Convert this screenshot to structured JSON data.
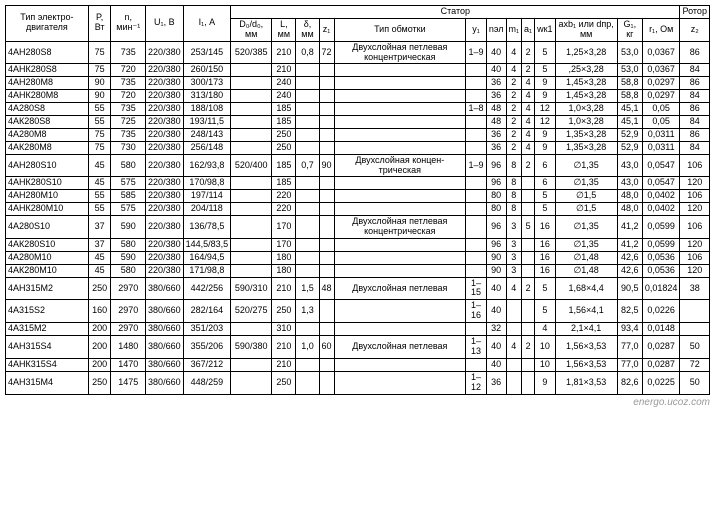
{
  "headers": {
    "type": "Тип электро-двигателя",
    "p": "P,\nВт",
    "n": "n,\nмин⁻¹",
    "u": "U₁,\nВ",
    "i": "I₁,\nА",
    "stator": "Статор",
    "rotor": "Ротор",
    "dc": "D₀/d₀,\nмм",
    "l": "L,\nмм",
    "delta": "δ,\nмм",
    "z1": "z₁",
    "winding": "Тип обмотки",
    "y1": "y₁",
    "np1": "nэл",
    "m1": "m₁",
    "a1": "a₁",
    "wk1": "wк1",
    "axb": "axb₁ или dпр,\nмм",
    "g1": "G₁, кг",
    "r1": "r₁, Ом",
    "z2": "z₂"
  },
  "rows": [
    {
      "type": "4АН280S8",
      "p": "75",
      "n": "735",
      "u": "220/380",
      "i": "253/145",
      "dc": "520/385",
      "l": "210",
      "d": "0,8",
      "z1": "72",
      "wind": "Двухслойная петлевая концентрическая",
      "y1": "1–9",
      "np": "40",
      "m": "4",
      "a": "2",
      "wk": "5",
      "axb": "1,25×3,28",
      "g": "53,0",
      "r": "0,0367",
      "z2": "86"
    },
    {
      "type": "4АНК280S8",
      "p": "75",
      "n": "720",
      "u": "220/380",
      "i": "260/150",
      "dc": "",
      "l": "210",
      "d": "",
      "z1": "",
      "wind": "",
      "y1": "",
      "np": "40",
      "m": "4",
      "a": "2",
      "wk": "5",
      "axb": ",25×3,28",
      "g": "53,0",
      "r": "0,0367",
      "z2": "84"
    },
    {
      "type": "4АН280М8",
      "p": "90",
      "n": "735",
      "u": "220/380",
      "i": "300/173",
      "dc": "",
      "l": "240",
      "d": "",
      "z1": "",
      "wind": "",
      "y1": "",
      "np": "36",
      "m": "2",
      "a": "4",
      "wk": "9",
      "axb": "1,45×3,28",
      "g": "58,8",
      "r": "0,0297",
      "z2": "86"
    },
    {
      "type": "4АНК280М8",
      "p": "90",
      "n": "720",
      "u": "220/380",
      "i": "313/180",
      "dc": "",
      "l": "240",
      "d": "",
      "z1": "",
      "wind": "",
      "y1": "",
      "np": "36",
      "m": "2",
      "a": "4",
      "wk": "9",
      "axb": "1,45×3,28",
      "g": "58,8",
      "r": "0,0297",
      "z2": "84"
    },
    {
      "type": "4А280S8",
      "p": "55",
      "n": "735",
      "u": "220/380",
      "i": "188/108",
      "dc": "",
      "l": "185",
      "d": "",
      "z1": "",
      "wind": "",
      "y1": "1–8",
      "np": "48",
      "m": "2",
      "a": "4",
      "wk": "12",
      "axb": "1,0×3,28",
      "g": "45,1",
      "r": "0,05",
      "z2": "86"
    },
    {
      "type": "4АК280S8",
      "p": "55",
      "n": "725",
      "u": "220/380",
      "i": "193/11,5",
      "dc": "",
      "l": "185",
      "d": "",
      "z1": "",
      "wind": "",
      "y1": "",
      "np": "48",
      "m": "2",
      "a": "4",
      "wk": "12",
      "axb": "1,0×3,28",
      "g": "45,1",
      "r": "0,05",
      "z2": "84"
    },
    {
      "type": "4А280М8",
      "p": "75",
      "n": "735",
      "u": "220/380",
      "i": "248/143",
      "dc": "",
      "l": "250",
      "d": "",
      "z1": "",
      "wind": "",
      "y1": "",
      "np": "36",
      "m": "2",
      "a": "4",
      "wk": "9",
      "axb": "1,35×3,28",
      "g": "52,9",
      "r": "0,0311",
      "z2": "86"
    },
    {
      "type": "4АК280М8",
      "p": "75",
      "n": "730",
      "u": "220/380",
      "i": "256/148",
      "dc": "",
      "l": "250",
      "d": "",
      "z1": "",
      "wind": "",
      "y1": "",
      "np": "36",
      "m": "2",
      "a": "4",
      "wk": "9",
      "axb": "1,35×3,28",
      "g": "52,9",
      "r": "0,0311",
      "z2": "84"
    },
    {
      "type": "4АН280S10",
      "p": "45",
      "n": "580",
      "u": "220/380",
      "i": "162/93,8",
      "dc": "520/400",
      "l": "185",
      "d": "0,7",
      "z1": "90",
      "wind": "Двухслойная концен-трическая",
      "y1": "1–9",
      "np": "96",
      "m": "8",
      "a": "2",
      "wk": "6",
      "axb": "∅1,35",
      "g": "43,0",
      "r": "0,0547",
      "z2": "106"
    },
    {
      "type": "4АНК280S10",
      "p": "45",
      "n": "575",
      "u": "220/380",
      "i": "170/98,8",
      "dc": "",
      "l": "185",
      "d": "",
      "z1": "",
      "wind": "",
      "y1": "",
      "np": "96",
      "m": "8",
      "a": "",
      "wk": "6",
      "axb": "∅1,35",
      "g": "43,0",
      "r": "0,0547",
      "z2": "120"
    },
    {
      "type": "4АН280М10",
      "p": "55",
      "n": "585",
      "u": "220/380",
      "i": "197/114",
      "dc": "",
      "l": "220",
      "d": "",
      "z1": "",
      "wind": "",
      "y1": "",
      "np": "80",
      "m": "8",
      "a": "",
      "wk": "5",
      "axb": "∅1,5",
      "g": "48,0",
      "r": "0,0402",
      "z2": "106"
    },
    {
      "type": "4АНК280М10",
      "p": "55",
      "n": "575",
      "u": "220/380",
      "i": "204/118",
      "dc": "",
      "l": "220",
      "d": "",
      "z1": "",
      "wind": "",
      "y1": "",
      "np": "80",
      "m": "8",
      "a": "",
      "wk": "5",
      "axb": "∅1,5",
      "g": "48,0",
      "r": "0,0402",
      "z2": "120"
    },
    {
      "type": "4А280S10",
      "p": "37",
      "n": "590",
      "u": "220/380",
      "i": "136/78,5",
      "dc": "",
      "l": "170",
      "d": "",
      "z1": "",
      "wind": "Двухслойная петлевая концентрическая",
      "y1": "",
      "np": "96",
      "m": "3",
      "a": "5",
      "wk": "16",
      "axb": "∅1,35",
      "g": "41,2",
      "r": "0,0599",
      "z2": "106"
    },
    {
      "type": "4АК280S10",
      "p": "37",
      "n": "580",
      "u": "220/380",
      "i": "144,5/83,5",
      "dc": "",
      "l": "170",
      "d": "",
      "z1": "",
      "wind": "",
      "y1": "",
      "np": "96",
      "m": "3",
      "a": "",
      "wk": "16",
      "axb": "∅1,35",
      "g": "41,2",
      "r": "0,0599",
      "z2": "120"
    },
    {
      "type": "4А280М10",
      "p": "45",
      "n": "590",
      "u": "220/380",
      "i": "164/94,5",
      "dc": "",
      "l": "180",
      "d": "",
      "z1": "",
      "wind": "",
      "y1": "",
      "np": "90",
      "m": "3",
      "a": "",
      "wk": "16",
      "axb": "∅1,48",
      "g": "42,6",
      "r": "0,0536",
      "z2": "106"
    },
    {
      "type": "4АК280М10",
      "p": "45",
      "n": "580",
      "u": "220/380",
      "i": "171/98,8",
      "dc": "",
      "l": "180",
      "d": "",
      "z1": "",
      "wind": "",
      "y1": "",
      "np": "90",
      "m": "3",
      "a": "",
      "wk": "16",
      "axb": "∅1,48",
      "g": "42,6",
      "r": "0,0536",
      "z2": "120"
    },
    {
      "type": "4АН315М2",
      "p": "250",
      "n": "2970",
      "u": "380/660",
      "i": "442/256",
      "dc": "590/310",
      "l": "210",
      "d": "1,5",
      "z1": "48",
      "wind": "Двухслойная петлевая",
      "y1": "1–15",
      "np": "40",
      "m": "4",
      "a": "2",
      "wk": "5",
      "axb": "1,68×4,4",
      "g": "90,5",
      "r": "0,01824",
      "z2": "38"
    },
    {
      "type": "4А315S2",
      "p": "160",
      "n": "2970",
      "u": "380/660",
      "i": "282/164",
      "dc": "520/275",
      "l": "250",
      "d": "1,3",
      "z1": "",
      "wind": "",
      "y1": "1–16",
      "np": "40",
      "m": "",
      "a": "",
      "wk": "5",
      "axb": "1,56×4,1",
      "g": "82,5",
      "r": "0,0226",
      "z2": ""
    },
    {
      "type": "4А315М2",
      "p": "200",
      "n": "2970",
      "u": "380/660",
      "i": "351/203",
      "dc": "",
      "l": "310",
      "d": "",
      "z1": "",
      "wind": "",
      "y1": "",
      "np": "32",
      "m": "",
      "a": "",
      "wk": "4",
      "axb": "2,1×4,1",
      "g": "93,4",
      "r": "0,0148",
      "z2": ""
    },
    {
      "type": "4АН315S4",
      "p": "200",
      "n": "1480",
      "u": "380/660",
      "i": "355/206",
      "dc": "590/380",
      "l": "210",
      "d": "1,0",
      "z1": "60",
      "wind": "Двухслойная петлевая",
      "y1": "1–13",
      "np": "40",
      "m": "4",
      "a": "2",
      "wk": "10",
      "axb": "1,56×3,53",
      "g": "77,0",
      "r": "0,0287",
      "z2": "50"
    },
    {
      "type": "4АНК315S4",
      "p": "200",
      "n": "1470",
      "u": "380/660",
      "i": "367/212",
      "dc": "",
      "l": "210",
      "d": "",
      "z1": "",
      "wind": "",
      "y1": "",
      "np": "40",
      "m": "",
      "a": "",
      "wk": "10",
      "axb": "1,56×3,53",
      "g": "77,0",
      "r": "0,0287",
      "z2": "72"
    },
    {
      "type": "4АН315М4",
      "p": "250",
      "n": "1475",
      "u": "380/660",
      "i": "448/259",
      "dc": "",
      "l": "250",
      "d": "",
      "z1": "",
      "wind": "",
      "y1": "1–12",
      "np": "36",
      "m": "",
      "a": "",
      "wk": "9",
      "axb": "1,81×3,53",
      "g": "82,6",
      "r": "0,0225",
      "z2": "50"
    }
  ],
  "watermark": "energo.ucoz.com"
}
